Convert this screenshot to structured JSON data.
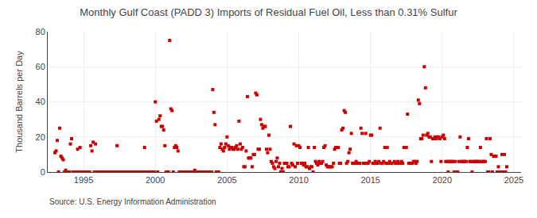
{
  "chart_data": {
    "type": "scatter",
    "title": "Monthly Gulf Coast (PADD 3) Imports of Residual Fuel Oil, Less than 0.31% Sulfur",
    "y_label": "Thousand Barrels per Day",
    "annotations": [
      "Source: U.S. Energy Information Administration"
    ],
    "color": "#cc0000",
    "marker": "square",
    "grid": true,
    "xlim": [
      1992.5,
      2025.5
    ],
    "xticks": [
      1995,
      2000,
      2005,
      2010,
      2015,
      2020,
      2025
    ],
    "ylim": [
      0,
      80
    ],
    "yticks": [
      0,
      20,
      40,
      60,
      80
    ],
    "x": [
      1993.0,
      1993.083,
      1993.167,
      1993.25,
      1993.333,
      1993.417,
      1993.5,
      1993.583,
      1993.667,
      1993.75,
      1993.833,
      1993.917,
      1994.0,
      1994.083,
      1994.167,
      1994.25,
      1994.333,
      1994.417,
      1994.5,
      1994.583,
      1994.667,
      1994.75,
      1994.833,
      1994.917,
      1995.0,
      1995.083,
      1995.167,
      1995.25,
      1995.333,
      1995.417,
      1995.5,
      1995.583,
      1995.667,
      1995.75,
      1995.833,
      1995.917,
      1996.0,
      1996.083,
      1996.167,
      1996.25,
      1996.333,
      1996.417,
      1996.5,
      1996.583,
      1996.667,
      1996.75,
      1996.833,
      1996.917,
      1997.0,
      1997.083,
      1997.167,
      1997.25,
      1997.333,
      1997.417,
      1997.5,
      1997.583,
      1997.667,
      1997.75,
      1997.833,
      1997.917,
      1998.0,
      1998.083,
      1998.167,
      1998.25,
      1998.333,
      1998.417,
      1998.5,
      1998.583,
      1998.667,
      1998.75,
      1998.833,
      1998.917,
      1999.0,
      1999.083,
      1999.167,
      1999.25,
      1999.333,
      1999.417,
      1999.5,
      1999.583,
      1999.667,
      1999.75,
      1999.833,
      1999.917,
      2000.0,
      2000.083,
      2000.167,
      2000.25,
      2000.333,
      2000.417,
      2000.5,
      2000.583,
      2000.667,
      2000.75,
      2000.833,
      2000.917,
      2001.0,
      2001.083,
      2001.167,
      2001.25,
      2001.333,
      2001.417,
      2001.5,
      2001.583,
      2001.667,
      2001.75,
      2001.833,
      2001.917,
      2002.0,
      2002.083,
      2002.167,
      2002.25,
      2002.333,
      2002.417,
      2002.5,
      2002.583,
      2002.667,
      2002.75,
      2002.833,
      2002.917,
      2003.0,
      2003.083,
      2003.167,
      2003.25,
      2003.333,
      2003.417,
      2003.5,
      2003.583,
      2003.667,
      2003.75,
      2003.833,
      2003.917,
      2004.0,
      2004.083,
      2004.167,
      2004.25,
      2004.333,
      2004.417,
      2004.5,
      2004.583,
      2004.667,
      2004.75,
      2004.833,
      2004.917,
      2005.0,
      2005.083,
      2005.167,
      2005.25,
      2005.333,
      2005.417,
      2005.5,
      2005.583,
      2005.667,
      2005.75,
      2005.833,
      2005.917,
      2006.0,
      2006.083,
      2006.167,
      2006.25,
      2006.333,
      2006.417,
      2006.5,
      2006.583,
      2006.667,
      2006.75,
      2006.833,
      2006.917,
      2007.0,
      2007.083,
      2007.167,
      2007.25,
      2007.333,
      2007.417,
      2007.5,
      2007.583,
      2007.667,
      2007.75,
      2007.833,
      2007.917,
      2008.0,
      2008.083,
      2008.167,
      2008.25,
      2008.333,
      2008.417,
      2008.5,
      2008.583,
      2008.667,
      2008.75,
      2008.833,
      2008.917,
      2009.0,
      2009.083,
      2009.167,
      2009.25,
      2009.333,
      2009.417,
      2009.5,
      2009.583,
      2009.667,
      2009.75,
      2009.833,
      2009.917,
      2010.0,
      2010.083,
      2010.167,
      2010.25,
      2010.333,
      2010.417,
      2010.5,
      2010.583,
      2010.667,
      2010.75,
      2010.833,
      2010.917,
      2011.0,
      2011.083,
      2011.167,
      2011.25,
      2011.333,
      2011.417,
      2011.5,
      2011.583,
      2011.667,
      2011.75,
      2011.833,
      2011.917,
      2012.0,
      2012.083,
      2012.167,
      2012.25,
      2012.333,
      2012.417,
      2012.5,
      2012.583,
      2012.667,
      2012.75,
      2012.833,
      2012.917,
      2013.0,
      2013.083,
      2013.167,
      2013.25,
      2013.333,
      2013.417,
      2013.5,
      2013.583,
      2013.667,
      2013.75,
      2013.833,
      2013.917,
      2014.0,
      2014.083,
      2014.167,
      2014.25,
      2014.333,
      2014.417,
      2014.5,
      2014.583,
      2014.667,
      2014.75,
      2014.833,
      2014.917,
      2015.0,
      2015.083,
      2015.167,
      2015.25,
      2015.333,
      2015.417,
      2015.5,
      2015.583,
      2015.667,
      2015.75,
      2015.833,
      2015.917,
      2016.0,
      2016.083,
      2016.167,
      2016.25,
      2016.333,
      2016.417,
      2016.5,
      2016.667,
      2016.75,
      2016.833,
      2016.917,
      2017.0,
      2017.083,
      2017.167,
      2017.25,
      2017.333,
      2017.417,
      2017.5,
      2017.583,
      2017.667,
      2017.75,
      2017.833,
      2017.917,
      2018.0,
      2018.083,
      2018.167,
      2018.25,
      2018.333,
      2018.417,
      2018.5,
      2018.583,
      2018.667,
      2018.75,
      2018.833,
      2018.917,
      2019.0,
      2019.083,
      2019.167,
      2019.25,
      2019.333,
      2019.417,
      2019.5,
      2019.583,
      2019.667,
      2019.75,
      2019.833,
      2019.917,
      2020.0,
      2020.083,
      2020.167,
      2020.25,
      2020.333,
      2020.417,
      2020.5,
      2020.583,
      2020.667,
      2020.75,
      2020.833,
      2020.917,
      2021.0,
      2021.083,
      2021.167,
      2021.25,
      2021.333,
      2021.417,
      2021.5,
      2021.583,
      2021.667,
      2021.75,
      2021.833,
      2021.917,
      2022.0,
      2022.083,
      2022.167,
      2022.25,
      2022.333,
      2022.417,
      2022.5,
      2022.583,
      2022.667,
      2022.75,
      2022.833,
      2022.917,
      2023.0,
      2023.083,
      2023.167,
      2023.25,
      2023.333,
      2023.417,
      2023.5,
      2023.583,
      2023.667,
      2023.75,
      2023.833,
      2023.917,
      2024.0,
      2024.083,
      2024.167,
      2024.25,
      2024.333,
      2024.417,
      2024.5
    ],
    "values": [
      11,
      12,
      18,
      0,
      25,
      9,
      8,
      7,
      0,
      1,
      0,
      0,
      0,
      16,
      19,
      0,
      0,
      0,
      0,
      13,
      0,
      14,
      0,
      0,
      0,
      0,
      0,
      0,
      0,
      0,
      15,
      12,
      17,
      0,
      16,
      0,
      0,
      0,
      0,
      0,
      0,
      0,
      0,
      0,
      0,
      0,
      0,
      0,
      0,
      0,
      0,
      0,
      15,
      0,
      0,
      0,
      0,
      0,
      0,
      0,
      0,
      0,
      0,
      0,
      0,
      0,
      0,
      0,
      0,
      0,
      0,
      0,
      0,
      0,
      0,
      14,
      0,
      0,
      0,
      0,
      0,
      0,
      0,
      0,
      40,
      29,
      0,
      30,
      32,
      26,
      26,
      24,
      15,
      0,
      0,
      0,
      75,
      36,
      35,
      0,
      14,
      15,
      14,
      12,
      0,
      0,
      0,
      0,
      0,
      0,
      0,
      0,
      0,
      0,
      0,
      0,
      0,
      1,
      0,
      0,
      0,
      0,
      0,
      0,
      0,
      0,
      0,
      0,
      0,
      0,
      0,
      0,
      47,
      34,
      27,
      0,
      0,
      0,
      14,
      16,
      13,
      12,
      14,
      16,
      20,
      15,
      13,
      14,
      14,
      13,
      13,
      14,
      15,
      13,
      29,
      16,
      13,
      14,
      3,
      3,
      12,
      43,
      8,
      8,
      8,
      3,
      10,
      10,
      45,
      44,
      13,
      13,
      30,
      27,
      25,
      26,
      26,
      13,
      11,
      21,
      13,
      6,
      5,
      3,
      2,
      6,
      8,
      3,
      5,
      0,
      2,
      0,
      5,
      5,
      5,
      3,
      3,
      26,
      5,
      4,
      16,
      3,
      15,
      5,
      15,
      14,
      5,
      5,
      4,
      5,
      3,
      3,
      14,
      2,
      3,
      3,
      0,
      14,
      6,
      5,
      4,
      6,
      5,
      5,
      6,
      14,
      15,
      4,
      3,
      3,
      3,
      3,
      3,
      5,
      13,
      14,
      14,
      14,
      5,
      5,
      24,
      25,
      35,
      34,
      5,
      6,
      11,
      13,
      22,
      5,
      5,
      5,
      6,
      5,
      5,
      5,
      25,
      22,
      5,
      5,
      22,
      5,
      5,
      6,
      21,
      21,
      5,
      5,
      6,
      5,
      5,
      6,
      25,
      5,
      5,
      6,
      14,
      5,
      14,
      5,
      6,
      5,
      5,
      6,
      5,
      5,
      6,
      5,
      5,
      6,
      5,
      14,
      14,
      14,
      33,
      5,
      5,
      5,
      5,
      6,
      6,
      5,
      6,
      41,
      39,
      19,
      19,
      21,
      60,
      48,
      21,
      22,
      20,
      20,
      6,
      19,
      19,
      20,
      19,
      20,
      20,
      19,
      6,
      20,
      21,
      19,
      6,
      6,
      0,
      6,
      6,
      6,
      6,
      0,
      6,
      0,
      0,
      6,
      20,
      6,
      6,
      6,
      6,
      6,
      14,
      19,
      6,
      6,
      0,
      6,
      6,
      6,
      6,
      6,
      6,
      14,
      6,
      6,
      6,
      6,
      19,
      0,
      0,
      19,
      10,
      0,
      9,
      9,
      9,
      0,
      3,
      0,
      0,
      10,
      0,
      10,
      0,
      3
    ]
  }
}
